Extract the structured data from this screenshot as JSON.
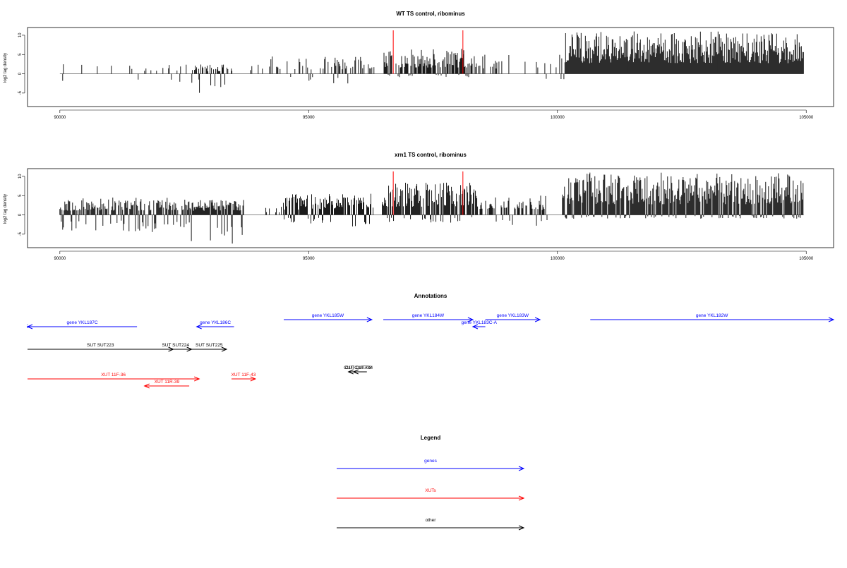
{
  "chart_data": [
    {
      "type": "bar",
      "title": "WT TS control, ribominus",
      "ylabel": "log2 tag density",
      "xlim": [
        89350,
        105550
      ],
      "ylim": [
        -8.5,
        12
      ],
      "x_ticks": [
        90000,
        95000,
        100000,
        105000
      ],
      "y_ticks": [
        -5,
        0,
        5,
        10
      ],
      "highlight_x": [
        96700,
        98100
      ],
      "highlight_color": "#ff0000",
      "baseline": 0,
      "segments": [
        {
          "from": 90000,
          "to": 94000,
          "density": 0.09,
          "pos_max": 2.5,
          "neg_max": 3.5
        },
        {
          "from": 92650,
          "to": 93500,
          "density": 0.4,
          "pos_max": 2.5,
          "neg_max": 5.5
        },
        {
          "from": 94000,
          "to": 96500,
          "density": 0.26,
          "pos_max": 4.5,
          "neg_max": 2.5
        },
        {
          "from": 96500,
          "to": 98300,
          "density": 0.85,
          "pos_max": 6.5,
          "neg_max": 1.0
        },
        {
          "from": 98300,
          "to": 100150,
          "density": 0.22,
          "pos_max": 5.0,
          "neg_max": 2.0
        },
        {
          "from": 100150,
          "to": 104950,
          "density": 1.0,
          "pos_max": 11.0,
          "neg_max": 0
        }
      ]
    },
    {
      "type": "bar",
      "title": "xrn1 TS control, ribominus",
      "ylabel": "log2 tag density",
      "xlim": [
        89350,
        105550
      ],
      "ylim": [
        -8.5,
        12
      ],
      "x_ticks": [
        90000,
        95000,
        100000,
        105000
      ],
      "y_ticks": [
        -5,
        0,
        5,
        10
      ],
      "highlight_x": [
        96700,
        98100
      ],
      "highlight_color": "#ff0000",
      "baseline": 0,
      "segments": [
        {
          "from": 90000,
          "to": 92600,
          "density": 0.8,
          "pos_max": 4.5,
          "neg_max": 4.5
        },
        {
          "from": 92600,
          "to": 93700,
          "density": 1.0,
          "pos_max": 4.0,
          "neg_max": 7.5
        },
        {
          "from": 93700,
          "to": 94450,
          "density": 0.1,
          "pos_max": 2.5,
          "neg_max": 3.0
        },
        {
          "from": 94450,
          "to": 96300,
          "density": 0.8,
          "pos_max": 5.5,
          "neg_max": 3.0
        },
        {
          "from": 96300,
          "to": 96480,
          "density": 0.1,
          "pos_max": 7.0,
          "neg_max": 0.5
        },
        {
          "from": 96480,
          "to": 98400,
          "density": 0.95,
          "pos_max": 8.5,
          "neg_max": 2.0
        },
        {
          "from": 98400,
          "to": 99800,
          "density": 0.6,
          "pos_max": 5.0,
          "neg_max": 3.0
        },
        {
          "from": 100100,
          "to": 104950,
          "density": 1.0,
          "pos_max": 11.0,
          "neg_max": 1.0
        }
      ]
    }
  ],
  "annotations": {
    "title": "Annotations",
    "features": [
      {
        "label": "gene YKL187C",
        "group": "genes",
        "start": 89350,
        "end": 91550,
        "strand": "-",
        "row": 2
      },
      {
        "label": "gene YKL186C",
        "group": "genes",
        "start": 92750,
        "end": 93500,
        "strand": "-",
        "row": 2
      },
      {
        "label": "gene YKL185W",
        "group": "genes",
        "start": 94500,
        "end": 96270,
        "strand": "+",
        "row": 1
      },
      {
        "label": "gene YKL184W",
        "group": "genes",
        "start": 96500,
        "end": 98300,
        "strand": "+",
        "row": 1
      },
      {
        "label": "gene YKL183C-A",
        "group": "genes",
        "start": 98300,
        "end": 98550,
        "strand": "-",
        "row": 2
      },
      {
        "label": "gene YKL183W",
        "group": "genes",
        "start": 98550,
        "end": 99650,
        "strand": "+",
        "row": 1
      },
      {
        "label": "gene YKL182W",
        "group": "genes",
        "start": 100660,
        "end": 105550,
        "strand": "+",
        "row": 1
      },
      {
        "label": "SUT SUT223",
        "group": "other",
        "start": 89350,
        "end": 92280,
        "strand": "+",
        "row": 3
      },
      {
        "label": "SUT SUT224",
        "group": "other",
        "start": 92000,
        "end": 92650,
        "strand": "+",
        "row": 3
      },
      {
        "label": "SUT SUT225",
        "group": "other",
        "start": 92650,
        "end": 93350,
        "strand": "+",
        "row": 3
      },
      {
        "label": "CUT CUT703",
        "group": "other",
        "start": 95800,
        "end": 96170,
        "strand": "-",
        "row": 4
      },
      {
        "label": "CUT CUT704",
        "group": "other",
        "start": 95900,
        "end": 96120,
        "strand": "-",
        "row": 4
      },
      {
        "label": "XUT 11F-36",
        "group": "XUTs",
        "start": 89350,
        "end": 92800,
        "strand": "+",
        "row": 5
      },
      {
        "label": "XUT 11R-39",
        "group": "XUTs",
        "start": 91700,
        "end": 92600,
        "strand": "-",
        "row": 6
      },
      {
        "label": "XUT 11F-43",
        "group": "XUTs",
        "start": 93450,
        "end": 93930,
        "strand": "+",
        "row": 5
      }
    ]
  },
  "legend": {
    "title": "Legend",
    "items": [
      {
        "label": "genes",
        "color": "#0000ff"
      },
      {
        "label": "XUTs",
        "color": "#ff0000"
      },
      {
        "label": "other",
        "color": "#000000"
      }
    ]
  },
  "colors": {
    "genes": "#0000ff",
    "XUTs": "#ff0000",
    "other": "#000000"
  }
}
